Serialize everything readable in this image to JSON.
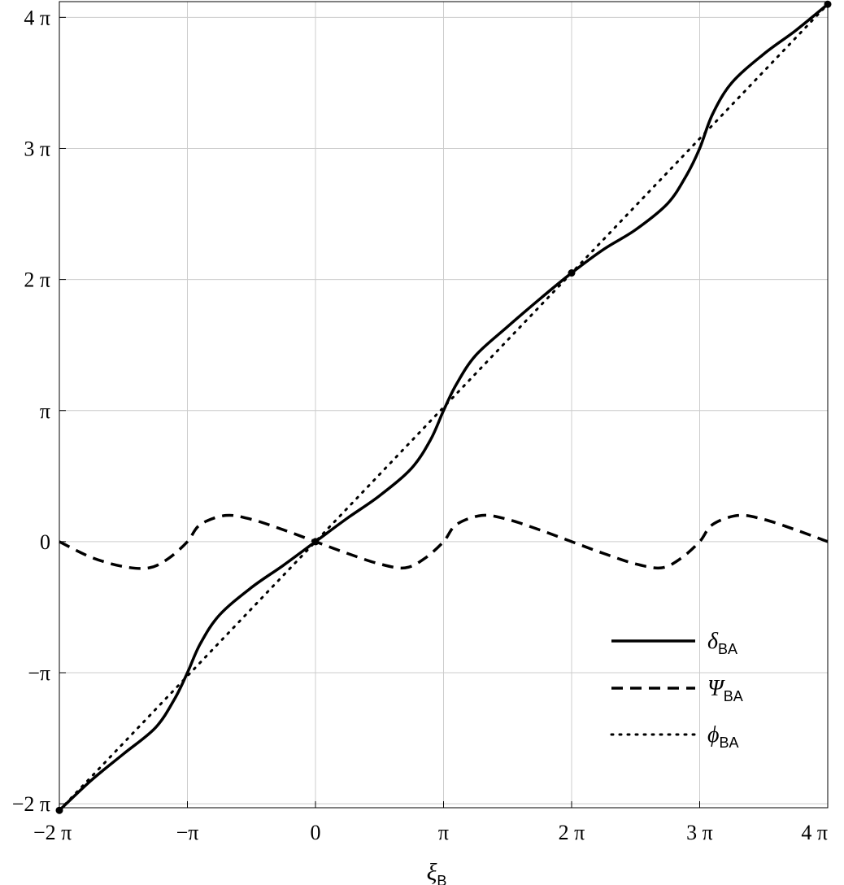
{
  "chart_data": {
    "type": "line",
    "title": "",
    "xlabel": "ξ",
    "xlabel_sub": "B",
    "ylabel": "",
    "xlim_pi": [
      -2,
      4
    ],
    "ylim_pi": [
      -2.03,
      4.12
    ],
    "grid": true,
    "legend_position": "bottom-right",
    "x_ticks": [
      {
        "value_pi": -2,
        "label": "−2 π"
      },
      {
        "value_pi": -1,
        "label": "−π"
      },
      {
        "value_pi": 0,
        "label": "0"
      },
      {
        "value_pi": 1,
        "label": "π"
      },
      {
        "value_pi": 2,
        "label": "2 π"
      },
      {
        "value_pi": 3,
        "label": "3 π"
      },
      {
        "value_pi": 4,
        "label": "4 π"
      }
    ],
    "y_ticks": [
      {
        "value_pi": -2,
        "label": "−2 π"
      },
      {
        "value_pi": -1,
        "label": "−π"
      },
      {
        "value_pi": 0,
        "label": "0"
      },
      {
        "value_pi": 1,
        "label": "π"
      },
      {
        "value_pi": 2,
        "label": "2 π"
      },
      {
        "value_pi": 3,
        "label": "3 π"
      },
      {
        "value_pi": 4,
        "label": "4 π"
      }
    ],
    "series": [
      {
        "name": "δ",
        "name_sub": "BA",
        "style": "solid",
        "x_pi": [
          -2,
          -1.75,
          -1.5,
          -1.25,
          -1.1,
          -1,
          -0.9,
          -0.75,
          -0.5,
          -0.25,
          0,
          0.25,
          0.5,
          0.75,
          0.9,
          1,
          1.1,
          1.25,
          1.5,
          1.75,
          2,
          2.25,
          2.5,
          2.75,
          2.9,
          3,
          3.1,
          3.25,
          3.5,
          3.75,
          4
        ],
        "y_pi": [
          -2.05,
          -1.82,
          -1.62,
          -1.42,
          -1.2,
          -1.0,
          -0.78,
          -0.56,
          -0.35,
          -0.18,
          0.0,
          0.18,
          0.35,
          0.56,
          0.78,
          1.0,
          1.2,
          1.42,
          1.64,
          1.85,
          2.05,
          2.23,
          2.38,
          2.58,
          2.8,
          3.0,
          3.26,
          3.5,
          3.72,
          3.9,
          4.1
        ]
      },
      {
        "name": "Ψ",
        "name_sub": "BA",
        "style": "dashed",
        "x_pi": [
          -2,
          -1.75,
          -1.5,
          -1.3,
          -1.15,
          -1,
          -0.9,
          -0.7,
          -0.5,
          -0.25,
          0,
          0.25,
          0.5,
          0.7,
          0.85,
          1,
          1.1,
          1.3,
          1.5,
          1.75,
          2,
          2.25,
          2.5,
          2.7,
          2.85,
          3,
          3.1,
          3.3,
          3.5,
          3.75,
          4
        ],
        "y_pi": [
          0.0,
          -0.12,
          -0.19,
          -0.2,
          -0.13,
          0.0,
          0.13,
          0.2,
          0.17,
          0.09,
          0.0,
          -0.09,
          -0.17,
          -0.2,
          -0.13,
          0.0,
          0.13,
          0.2,
          0.17,
          0.09,
          0.0,
          -0.09,
          -0.17,
          -0.2,
          -0.13,
          0.0,
          0.13,
          0.2,
          0.17,
          0.09,
          0.0
        ]
      },
      {
        "name": "ϕ",
        "name_sub": "BA",
        "style": "dotted",
        "x_pi": [
          -2,
          4
        ],
        "y_pi": [
          -2.05,
          4.1
        ]
      }
    ],
    "points_pi": [
      {
        "x": -2,
        "y": -2.05
      },
      {
        "x": 0,
        "y": 0
      },
      {
        "x": 2,
        "y": 2.05
      },
      {
        "x": 4,
        "y": 4.1
      }
    ]
  }
}
